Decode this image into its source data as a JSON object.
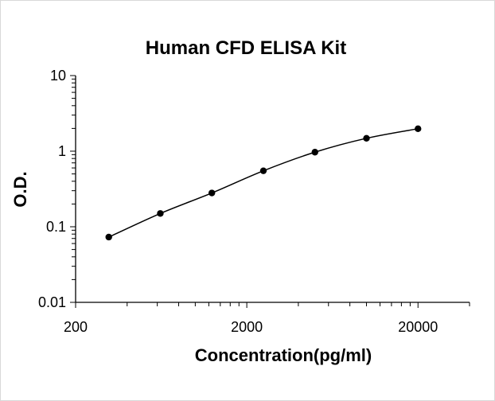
{
  "chart_data": {
    "type": "scatter",
    "title": "Human CFD ELISA Kit",
    "xlabel": "Concentration(pg/ml)",
    "ylabel": "O.D.",
    "x_scale": "log",
    "y_scale": "log",
    "xlim": [
      200,
      40000
    ],
    "ylim": [
      0.01,
      10
    ],
    "x_ticks": [
      "200",
      "2000",
      "20000"
    ],
    "y_ticks": [
      "0.01",
      "0.1",
      "1",
      "10"
    ],
    "grid": false,
    "series": [
      {
        "x": [
          312.5,
          625,
          1250,
          2500,
          5000,
          10000,
          20000
        ],
        "y": [
          0.073,
          0.15,
          0.28,
          0.55,
          0.97,
          1.48,
          1.98
        ]
      }
    ],
    "colors": {
      "line": "#000000",
      "marker": "#000000",
      "axis": "#000000"
    }
  }
}
